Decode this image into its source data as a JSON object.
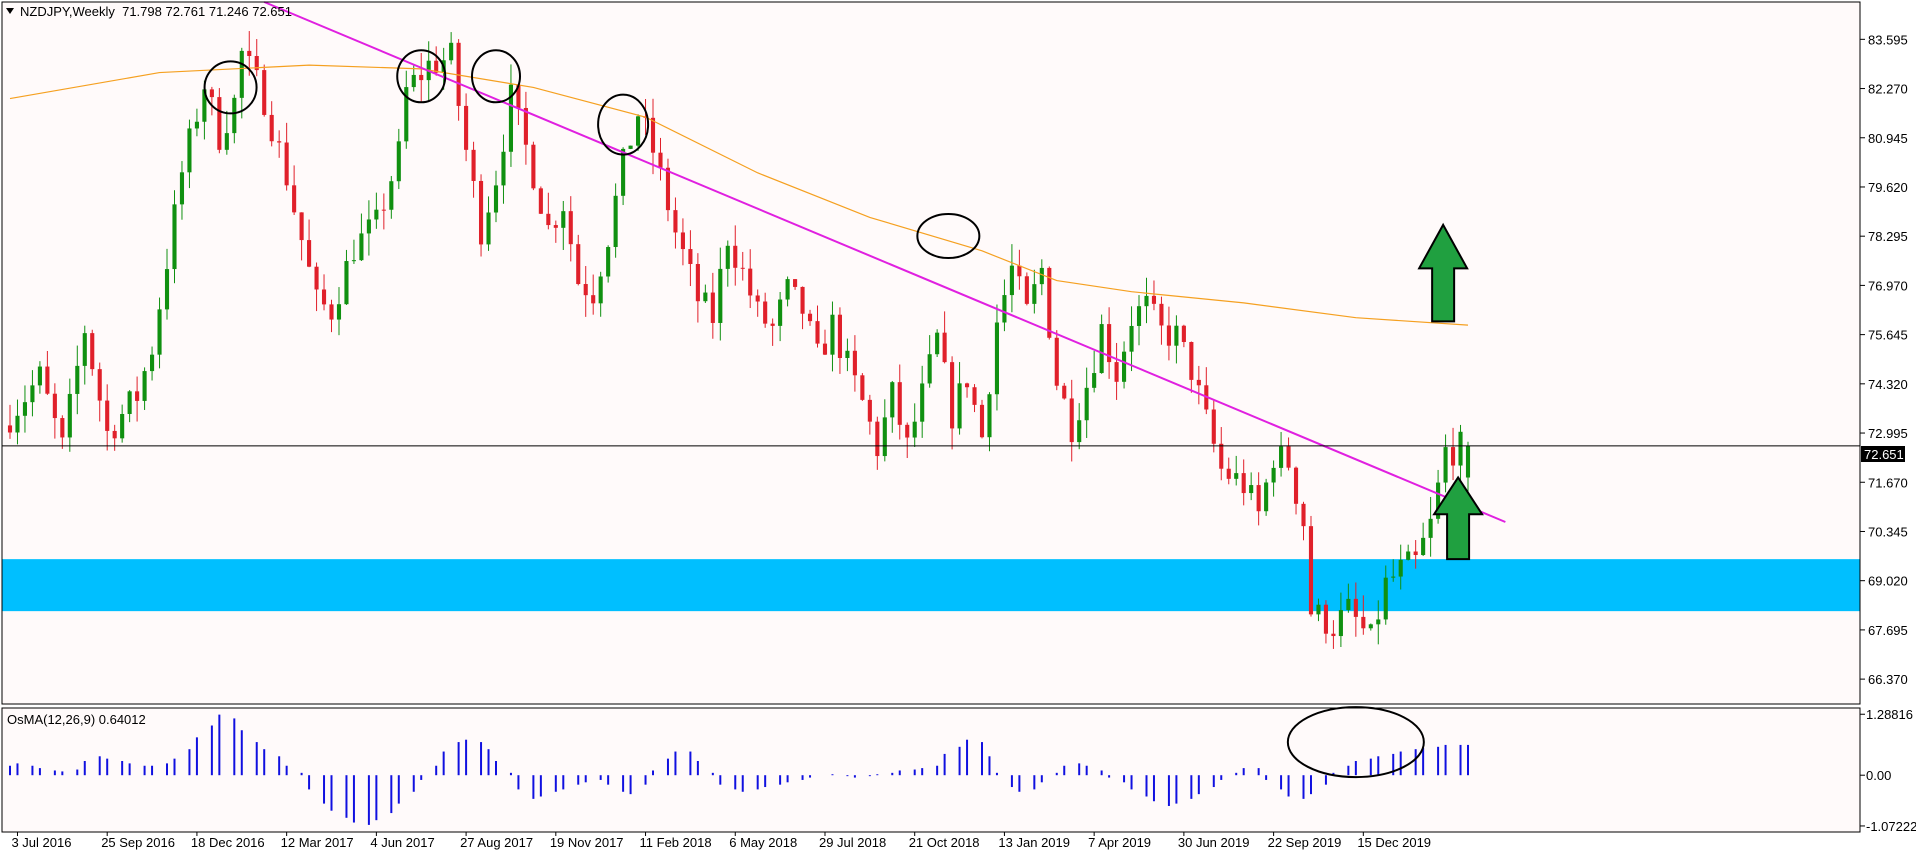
{
  "header": {
    "symbol_line": "NZDJPY,Weekly  71.798 72.761 71.246 72.651",
    "indicator_line": "OsMA(12,26,9) 0.64012"
  },
  "colors": {
    "background": "#fffafa",
    "bull": "#109010",
    "bear": "#e0202a",
    "ma": "#f5a020",
    "trendline": "#e020e0",
    "zone": "#00bfff",
    "osma": "#1010e0",
    "price_line": "#000000",
    "arrow": "#20a040",
    "frame": "#000000"
  },
  "chart_data": {
    "type": "candlestick",
    "symbol": "NZDJPY",
    "timeframe": "Weekly",
    "last": {
      "open": 71.798,
      "high": 72.761,
      "low": 71.246,
      "close": 72.651
    },
    "price_label": "72.651",
    "y_ticks": [
      "83.595",
      "82.270",
      "80.945",
      "79.620",
      "78.295",
      "76.970",
      "75.645",
      "74.320",
      "72.995",
      "71.670",
      "70.345",
      "69.020",
      "67.695",
      "66.370"
    ],
    "ylim": [
      65.7,
      84.6
    ],
    "x_ticks": [
      "3 Jul 2016",
      "25 Sep 2016",
      "18 Dec 2016",
      "12 Mar 2017",
      "4 Jun 2017",
      "27 Aug 2017",
      "19 Nov 2017",
      "11 Feb 2018",
      "6 May 2018",
      "29 Jul 2018",
      "21 Oct 2018",
      "13 Jan 2019",
      "7 Apr 2019",
      "30 Jun 2019",
      "22 Sep 2019",
      "15 Dec 2019"
    ],
    "anchors": [
      [
        0,
        73.2
      ],
      [
        5,
        74.5
      ],
      [
        8,
        72.6
      ],
      [
        11,
        75.8
      ],
      [
        14,
        73.0
      ],
      [
        18,
        74.0
      ],
      [
        20,
        75.3
      ],
      [
        24,
        80.0
      ],
      [
        27,
        82.4
      ],
      [
        29,
        81.0
      ],
      [
        31,
        81.9
      ],
      [
        32,
        83.2
      ],
      [
        35,
        82.0
      ],
      [
        38,
        79.9
      ],
      [
        42,
        76.5
      ],
      [
        44,
        76.3
      ],
      [
        47,
        78.0
      ],
      [
        50,
        78.6
      ],
      [
        53,
        80.5
      ],
      [
        54,
        82.2
      ],
      [
        57,
        82.9
      ],
      [
        60,
        83.1
      ],
      [
        62,
        80.6
      ],
      [
        64,
        78.5
      ],
      [
        66,
        79.9
      ],
      [
        68,
        82.0
      ],
      [
        71,
        80.0
      ],
      [
        73,
        78.5
      ],
      [
        75,
        79.2
      ],
      [
        77,
        77.1
      ],
      [
        79,
        76.8
      ],
      [
        81,
        78.3
      ],
      [
        83,
        80.2
      ],
      [
        85,
        81.6
      ],
      [
        87,
        80.6
      ],
      [
        90,
        78.4
      ],
      [
        93,
        76.6
      ],
      [
        95,
        76.1
      ],
      [
        97,
        78.3
      ],
      [
        99,
        77.3
      ],
      [
        101,
        76.2
      ],
      [
        103,
        75.8
      ],
      [
        105,
        76.8
      ],
      [
        107,
        76.3
      ],
      [
        109,
        75.0
      ],
      [
        111,
        75.9
      ],
      [
        113,
        74.8
      ],
      [
        115,
        73.8
      ],
      [
        117,
        72.6
      ],
      [
        119,
        74.0
      ],
      [
        121,
        72.6
      ],
      [
        123,
        74.0
      ],
      [
        125,
        75.5
      ],
      [
        127,
        73.5
      ],
      [
        129,
        74.5
      ],
      [
        131,
        72.9
      ],
      [
        133,
        76.0
      ],
      [
        135,
        77.4
      ],
      [
        137,
        76.2
      ],
      [
        139,
        77.4
      ],
      [
        141,
        74.4
      ],
      [
        143,
        73.2
      ],
      [
        145,
        74.3
      ],
      [
        147,
        75.8
      ],
      [
        149,
        74.6
      ],
      [
        151,
        76.1
      ],
      [
        153,
        76.4
      ],
      [
        155,
        75.7
      ],
      [
        157,
        75.6
      ],
      [
        159,
        74.7
      ],
      [
        161,
        73.3
      ],
      [
        163,
        72.0
      ],
      [
        166,
        71.6
      ],
      [
        168,
        70.8
      ],
      [
        170,
        72.4
      ],
      [
        172,
        72.2
      ],
      [
        174,
        70.6
      ],
      [
        175,
        68.2
      ],
      [
        178,
        67.8
      ],
      [
        180,
        68.2
      ],
      [
        183,
        67.4
      ],
      [
        185,
        68.9
      ],
      [
        187,
        69.3
      ],
      [
        189,
        69.5
      ],
      [
        191,
        70.5
      ],
      [
        193,
        72.5
      ],
      [
        195,
        72.6
      ]
    ],
    "ma": {
      "name": "MA",
      "points": [
        [
          0,
          82.0
        ],
        [
          20,
          82.7
        ],
        [
          40,
          82.9
        ],
        [
          55,
          82.8
        ],
        [
          70,
          82.3
        ],
        [
          85,
          81.5
        ],
        [
          100,
          80.0
        ],
        [
          115,
          78.8
        ],
        [
          130,
          77.9
        ],
        [
          140,
          77.1
        ],
        [
          150,
          76.8
        ],
        [
          165,
          76.5
        ],
        [
          180,
          76.1
        ],
        [
          195,
          75.9
        ]
      ]
    },
    "trendline": {
      "from": [
        34,
        85.2
      ],
      "to": [
        200,
        70.6
      ]
    },
    "support_zone": [
      68.2,
      69.6
    ],
    "osma": {
      "name": "OsMA(12,26,9)",
      "value": 0.64012,
      "y_ticks": [
        "1.28816",
        "0.00",
        "-1.07222"
      ],
      "ylim": [
        -1.2,
        1.42
      ],
      "values": [
        0.2,
        0.25,
        0.2,
        0.15,
        0.1,
        0.08,
        0.12,
        0.3,
        0.4,
        0.35,
        0.3,
        0.25,
        0.2,
        0.2,
        0.25,
        0.35,
        0.55,
        0.8,
        1.05,
        1.28,
        1.2,
        0.95,
        0.7,
        0.55,
        0.4,
        0.2,
        0.05,
        -0.3,
        -0.6,
        -0.75,
        -0.9,
        -1.0,
        -1.05,
        -0.95,
        -0.8,
        -0.6,
        -0.35,
        -0.1,
        0.2,
        0.5,
        0.7,
        0.75,
        0.7,
        0.55,
        0.3,
        0.05,
        -0.3,
        -0.5,
        -0.45,
        -0.35,
        -0.3,
        -0.2,
        -0.15,
        -0.1,
        -0.2,
        -0.35,
        -0.4,
        -0.2,
        0.1,
        0.35,
        0.5,
        0.5,
        0.3,
        0.05,
        -0.2,
        -0.3,
        -0.35,
        -0.3,
        -0.25,
        -0.2,
        -0.15,
        -0.1,
        -0.05,
        0.0,
        0.02,
        -0.02,
        -0.05,
        -0.02,
        0.02,
        0.05,
        0.1,
        0.12,
        0.15,
        0.2,
        0.45,
        0.6,
        0.75,
        0.7,
        0.4,
        0.05,
        -0.25,
        -0.35,
        -0.3,
        -0.15,
        0.05,
        0.2,
        0.25,
        0.2,
        0.1,
        -0.05,
        -0.15,
        -0.3,
        -0.45,
        -0.55,
        -0.65,
        -0.6,
        -0.5,
        -0.4,
        -0.25,
        -0.1,
        0.05,
        0.15,
        0.15,
        -0.1,
        -0.3,
        -0.45,
        -0.5,
        -0.4,
        -0.2,
        0.05,
        0.2,
        0.3,
        0.35,
        0.4,
        0.45,
        0.5,
        0.55,
        0.58,
        0.6,
        0.64,
        0.64,
        0.64
      ]
    }
  },
  "annotations": {
    "circles": [
      {
        "x": 29.5,
        "y": 82.3,
        "rx": 26,
        "ry": 26
      },
      {
        "x": 55,
        "y": 82.6,
        "rx": 24,
        "ry": 26
      },
      {
        "x": 65,
        "y": 82.6,
        "rx": 24,
        "ry": 26
      },
      {
        "x": 82,
        "y": 81.3,
        "rx": 25,
        "ry": 30
      },
      {
        "x": 125.5,
        "y": 78.3,
        "rx": 31,
        "ry": 22
      }
    ],
    "osma_ellipse": {
      "x": 180,
      "y": 0.7,
      "rx": 68,
      "ry": 35
    },
    "arrows": [
      {
        "x": 189,
        "price_tip": 78.6,
        "price_base": 76.0
      },
      {
        "x": 191,
        "price_tip": 71.8,
        "price_base": 69.6
      }
    ]
  }
}
